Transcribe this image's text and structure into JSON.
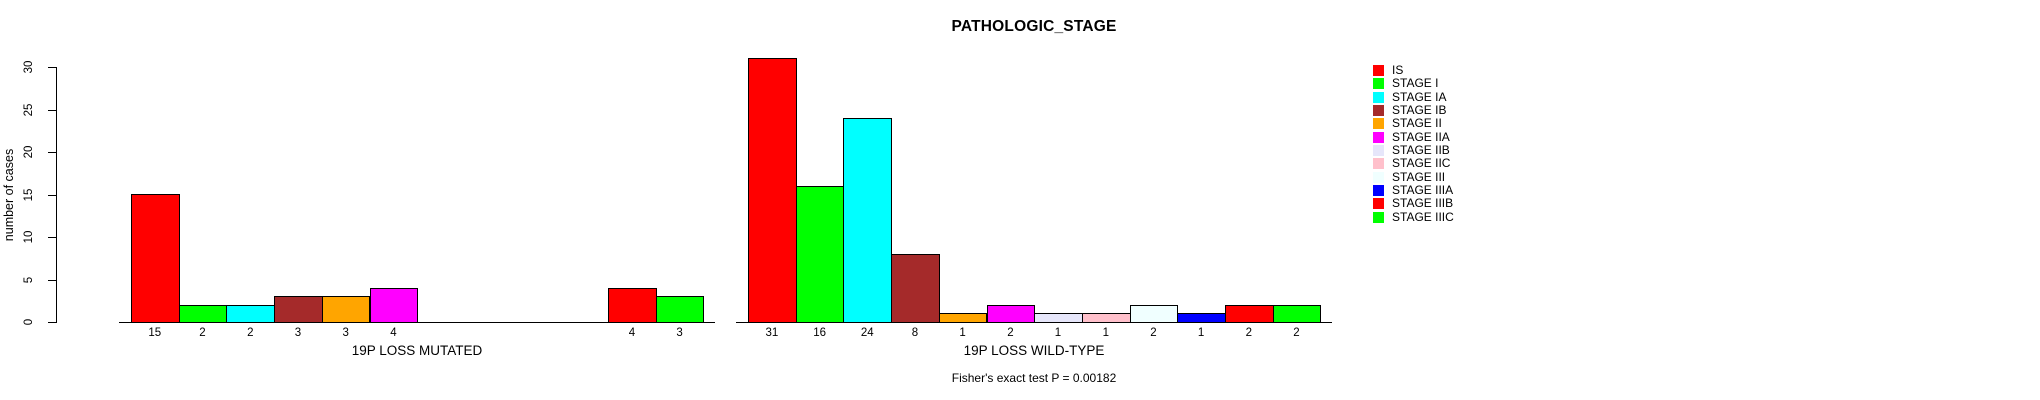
{
  "figure_title": "PATHOLOGIC_STAGE",
  "chart_data": {
    "type": "bar",
    "title": "PATHOLOGIC_STAGE",
    "xlabel": "",
    "ylabel": "number of cases",
    "ylim": [
      0,
      30
    ],
    "yticks": [
      0,
      5,
      10,
      15,
      20,
      25,
      30
    ],
    "grid": false,
    "bar_border_color": "#000000",
    "legend_position": "right",
    "categories": [
      "IS",
      "STAGE I",
      "STAGE IA",
      "STAGE IB",
      "STAGE II",
      "STAGE IIA",
      "STAGE IIB",
      "STAGE IIC",
      "STAGE III",
      "STAGE IIIA",
      "STAGE IIIB",
      "STAGE IIIC"
    ],
    "series_colors": [
      "#FF0000",
      "#00FF00",
      "#00FFFF",
      "#A52A2A",
      "#FFA500",
      "#FF00FF",
      "#E6E6FA",
      "#FFC0CB",
      "#F0FFFF",
      "#0000FF",
      "#FF0000",
      "#00FF00"
    ],
    "groups": [
      {
        "label": "19P LOSS MUTATED",
        "values": [
          15,
          2,
          2,
          3,
          3,
          4,
          0,
          0,
          0,
          0,
          4,
          3
        ]
      },
      {
        "label": "19P LOSS WILD-TYPE",
        "values": [
          31,
          16,
          24,
          8,
          1,
          2,
          1,
          1,
          2,
          1,
          2,
          2
        ]
      }
    ],
    "legend": [
      {
        "label": "IS",
        "color": "#FF0000"
      },
      {
        "label": "STAGE I",
        "color": "#00FF00"
      },
      {
        "label": "STAGE IA",
        "color": "#00FFFF"
      },
      {
        "label": "STAGE IB",
        "color": "#A52A2A"
      },
      {
        "label": "STAGE II",
        "color": "#FFA500"
      },
      {
        "label": "STAGE IIA",
        "color": "#FF00FF"
      },
      {
        "label": "STAGE IIB",
        "color": "#E6E6FA"
      },
      {
        "label": "STAGE IIC",
        "color": "#FFC0CB"
      },
      {
        "label": "STAGE III",
        "color": "#F0FFFF"
      },
      {
        "label": "STAGE IIIA",
        "color": "#0000FF"
      },
      {
        "label": "STAGE IIIB",
        "color": "#FF0000"
      },
      {
        "label": "STAGE IIIC",
        "color": "#00FF00"
      }
    ],
    "annotation": "Fisher's exact test P = 0.00182"
  }
}
